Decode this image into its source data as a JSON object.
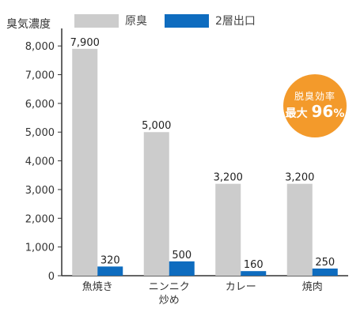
{
  "colors": {
    "original": "#cccccc",
    "outlet": "#0e6cbf",
    "badge": "#f39a2b"
  },
  "legend": [
    {
      "label": "原臭",
      "color": "#cccccc"
    },
    {
      "label": "2層出口",
      "color": "#0e6cbf"
    }
  ],
  "badge": {
    "line1": "脱臭効率",
    "line2_prefix": "最大",
    "value": "96",
    "unit": "%"
  },
  "chart_data": {
    "type": "bar",
    "ylabel": "臭気濃度",
    "ylim": [
      0,
      8500
    ],
    "yticks": [
      0,
      1000,
      2000,
      3000,
      4000,
      5000,
      6000,
      7000,
      8000
    ],
    "ytick_labels": [
      "0",
      "1,000",
      "2,000",
      "3,000",
      "4,000",
      "5,000",
      "6,000",
      "7,000",
      "8,000"
    ],
    "categories": [
      {
        "lines": [
          "魚焼き"
        ]
      },
      {
        "lines": [
          "ニンニク",
          "炒め"
        ]
      },
      {
        "lines": [
          "カレー"
        ]
      },
      {
        "lines": [
          "焼肉"
        ]
      }
    ],
    "series": [
      {
        "name": "原臭",
        "values": [
          7900,
          5000,
          3200,
          3200
        ],
        "labels": [
          "7,900",
          "5,000",
          "3,200",
          "3,200"
        ]
      },
      {
        "name": "2層出口",
        "values": [
          320,
          500,
          160,
          250
        ],
        "labels": [
          "320",
          "500",
          "160",
          "250"
        ]
      }
    ]
  }
}
